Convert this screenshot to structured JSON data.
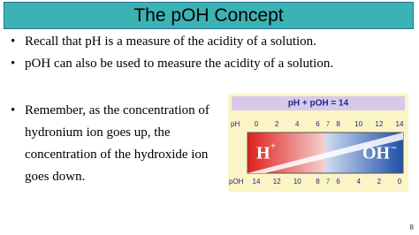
{
  "header": {
    "title": "The pOH Concept"
  },
  "bullets": [
    "Recall that pH is a measure of the acidity of a solution.",
    "pOH can also be used to measure the acidity of a solution.",
    "Remember, as the concentration of hydronium ion goes up, the concentration of the hydroxide ion goes down."
  ],
  "figure": {
    "equation": "pH + pOH = 14",
    "ph_label": "pH",
    "ph_ticks": [
      0,
      2,
      4,
      6,
      7,
      8,
      10,
      12,
      14
    ],
    "poh_label": "pOH",
    "poh_ticks": [
      14,
      12,
      10,
      8,
      7,
      6,
      4,
      2,
      0
    ],
    "h_ion": "H",
    "h_charge": "+",
    "oh_ion": "OH",
    "oh_charge": "−"
  },
  "page_number": "8"
}
